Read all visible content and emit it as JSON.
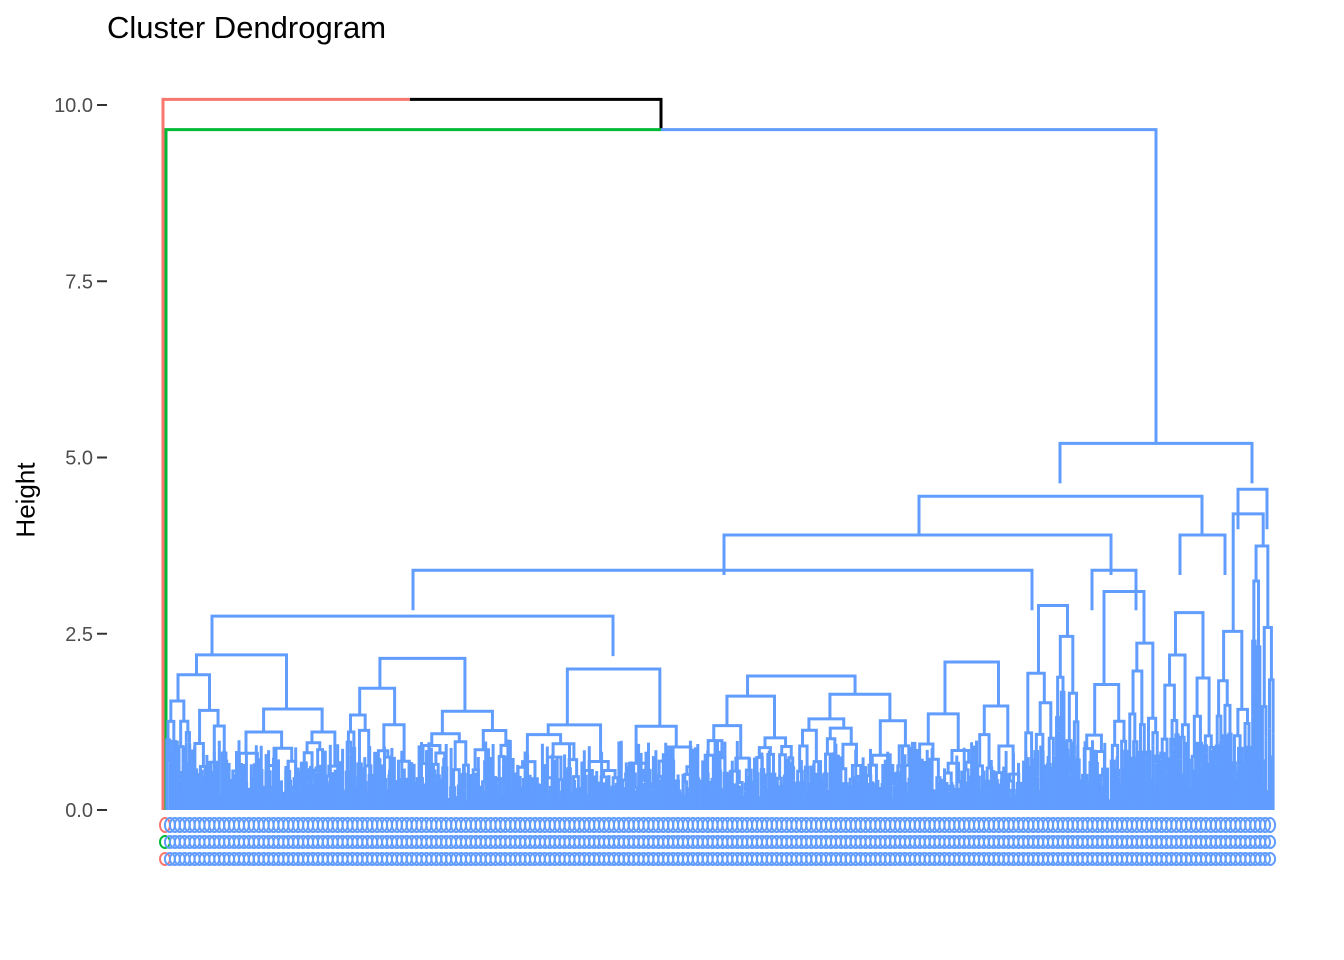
{
  "chart_data": {
    "type": "dendrogram",
    "title": "Cluster Dendrogram",
    "xlabel": "",
    "ylabel": "Height",
    "ylim": [
      0,
      10.2
    ],
    "y_ticks": [
      "0.0",
      "2.5",
      "5.0",
      "7.5",
      "10.0"
    ],
    "y_tick_values": [
      0,
      2.5,
      5,
      7.5,
      10
    ],
    "grid": false,
    "legend": "none",
    "n_leaves": 450,
    "clusters": [
      {
        "name": "1",
        "color": "#F8766D",
        "size": 1,
        "merge_height": 0
      },
      {
        "name": "2",
        "color": "#00BA38",
        "size": 1,
        "merge_height": 0
      },
      {
        "name": "3",
        "color": "#619CFF",
        "size": 448,
        "merge_height": 9.65
      }
    ],
    "top_merges": [
      {
        "height": 10.08,
        "left": "cluster 1",
        "right": "clusters 2+3",
        "color": "#000000"
      },
      {
        "height": 9.65,
        "left": "cluster 2",
        "right": "cluster 3",
        "color": "#000000"
      },
      {
        "height": 5.2,
        "within": "cluster 3"
      },
      {
        "height": 4.45,
        "within": "cluster 3"
      },
      {
        "height": 3.9,
        "within": "cluster 3"
      },
      {
        "height": 3.4,
        "within": "cluster 3"
      },
      {
        "height": 2.75,
        "within": "cluster 3"
      }
    ],
    "leaf_label_colors": [
      "#F8766D",
      "#00BA38",
      "#619CFF"
    ]
  }
}
